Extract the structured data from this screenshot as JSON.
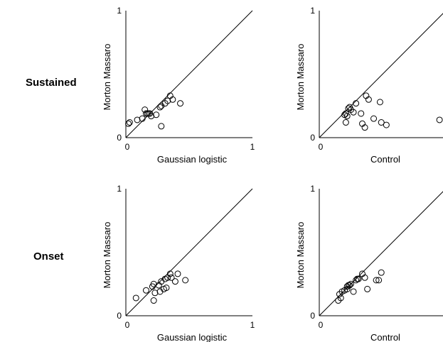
{
  "rows": [
    {
      "label": "Sustained"
    },
    {
      "label": "Onset"
    }
  ],
  "chart_data": [
    {
      "type": "scatter",
      "row": "Sustained",
      "xlabel": "Gaussian logistic",
      "ylabel": "Morton Massaro",
      "xlim": [
        0,
        1
      ],
      "ylim": [
        0,
        1
      ],
      "x_ticks": [
        "0",
        "1"
      ],
      "y_ticks": [
        "0",
        "1"
      ],
      "diagonal": true,
      "points": [
        [
          0.02,
          0.11
        ],
        [
          0.03,
          0.12
        ],
        [
          0.09,
          0.14
        ],
        [
          0.13,
          0.15
        ],
        [
          0.15,
          0.22
        ],
        [
          0.16,
          0.19
        ],
        [
          0.17,
          0.19
        ],
        [
          0.18,
          0.19
        ],
        [
          0.19,
          0.19
        ],
        [
          0.2,
          0.17
        ],
        [
          0.24,
          0.18
        ],
        [
          0.27,
          0.24
        ],
        [
          0.28,
          0.25
        ],
        [
          0.31,
          0.27
        ],
        [
          0.33,
          0.29
        ],
        [
          0.35,
          0.33
        ],
        [
          0.37,
          0.3
        ],
        [
          0.43,
          0.27
        ],
        [
          0.28,
          0.09
        ]
      ]
    },
    {
      "type": "scatter",
      "row": "Sustained",
      "xlabel": "Control",
      "ylabel": "Morton Massaro",
      "xlim": [
        0,
        1
      ],
      "ylim": [
        0,
        1
      ],
      "x_ticks": [
        "0",
        ""
      ],
      "y_ticks": [
        "0",
        "1"
      ],
      "diagonal": true,
      "points": [
        [
          0.2,
          0.18
        ],
        [
          0.21,
          0.19
        ],
        [
          0.22,
          0.17
        ],
        [
          0.23,
          0.23
        ],
        [
          0.24,
          0.24
        ],
        [
          0.25,
          0.22
        ],
        [
          0.27,
          0.2
        ],
        [
          0.21,
          0.12
        ],
        [
          0.29,
          0.27
        ],
        [
          0.33,
          0.19
        ],
        [
          0.37,
          0.33
        ],
        [
          0.39,
          0.3
        ],
        [
          0.34,
          0.11
        ],
        [
          0.36,
          0.08
        ],
        [
          0.43,
          0.15
        ],
        [
          0.48,
          0.28
        ],
        [
          0.49,
          0.12
        ],
        [
          0.53,
          0.1
        ],
        [
          0.95,
          0.14
        ]
      ]
    },
    {
      "type": "scatter",
      "row": "Onset",
      "xlabel": "Gaussian logistic",
      "ylabel": "Morton Massaro",
      "xlim": [
        0,
        1
      ],
      "ylim": [
        0,
        1
      ],
      "x_ticks": [
        "0",
        "1"
      ],
      "y_ticks": [
        "0",
        "1"
      ],
      "diagonal": true,
      "points": [
        [
          0.08,
          0.14
        ],
        [
          0.16,
          0.2
        ],
        [
          0.21,
          0.23
        ],
        [
          0.22,
          0.25
        ],
        [
          0.23,
          0.18
        ],
        [
          0.26,
          0.24
        ],
        [
          0.27,
          0.19
        ],
        [
          0.28,
          0.27
        ],
        [
          0.3,
          0.21
        ],
        [
          0.31,
          0.29
        ],
        [
          0.32,
          0.22
        ],
        [
          0.33,
          0.3
        ],
        [
          0.35,
          0.33
        ],
        [
          0.36,
          0.3
        ],
        [
          0.39,
          0.27
        ],
        [
          0.41,
          0.33
        ],
        [
          0.47,
          0.28
        ],
        [
          0.22,
          0.12
        ]
      ]
    },
    {
      "type": "scatter",
      "row": "Onset",
      "xlabel": "Control",
      "ylabel": "Morton Massaro",
      "xlim": [
        0,
        1
      ],
      "ylim": [
        0,
        1
      ],
      "x_ticks": [
        "0",
        ""
      ],
      "y_ticks": [
        "0",
        "1"
      ],
      "diagonal": true,
      "points": [
        [
          0.15,
          0.12
        ],
        [
          0.16,
          0.17
        ],
        [
          0.17,
          0.14
        ],
        [
          0.18,
          0.19
        ],
        [
          0.2,
          0.2
        ],
        [
          0.22,
          0.21
        ],
        [
          0.22,
          0.23
        ],
        [
          0.23,
          0.24
        ],
        [
          0.24,
          0.24
        ],
        [
          0.25,
          0.25
        ],
        [
          0.27,
          0.19
        ],
        [
          0.29,
          0.28
        ],
        [
          0.3,
          0.29
        ],
        [
          0.31,
          0.29
        ],
        [
          0.34,
          0.33
        ],
        [
          0.36,
          0.3
        ],
        [
          0.38,
          0.21
        ],
        [
          0.45,
          0.28
        ],
        [
          0.47,
          0.28
        ],
        [
          0.49,
          0.34
        ]
      ]
    }
  ]
}
